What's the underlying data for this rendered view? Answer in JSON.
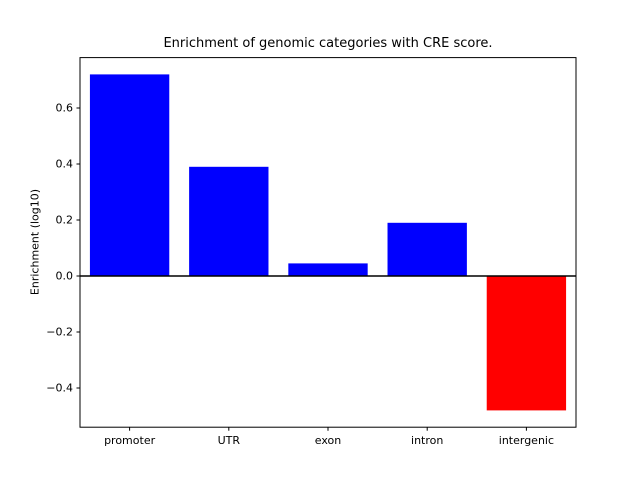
{
  "chart_data": {
    "type": "bar",
    "title": "Enrichment of genomic categories with CRE score.",
    "ylabel": "Enrichment (log10)",
    "xlabel": "",
    "categories": [
      "promoter",
      "UTR",
      "exon",
      "intron",
      "intergenic"
    ],
    "values": [
      0.72,
      0.39,
      0.045,
      0.19,
      -0.48
    ],
    "bar_colors": [
      "#0000ff",
      "#0000ff",
      "#0000ff",
      "#0000ff",
      "#ff0000"
    ],
    "positive_color": "#0000ff",
    "negative_color": "#ff0000",
    "ylim": [
      -0.54,
      0.78
    ],
    "yticks": [
      -0.4,
      -0.2,
      0.0,
      0.2,
      0.4,
      0.6
    ],
    "grid": false,
    "zero_line": true,
    "legend": null,
    "axis_color": "#000000",
    "background_color": "#ffffff"
  }
}
